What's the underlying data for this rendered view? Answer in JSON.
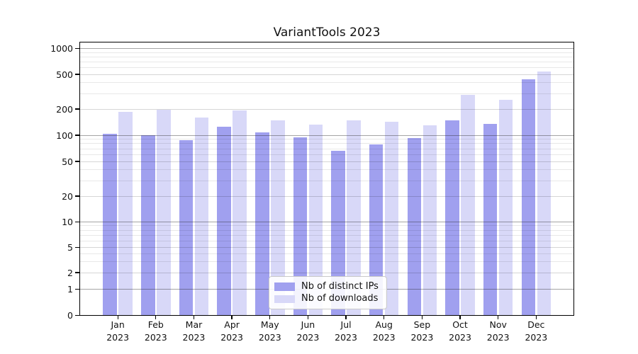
{
  "title": "VariantTools 2023",
  "chart_data": {
    "type": "bar",
    "title": "VariantTools 2023",
    "categories": [
      "Jan 2023",
      "Feb 2023",
      "Mar 2023",
      "Apr 2023",
      "May 2023",
      "Jun 2023",
      "Jul 2023",
      "Aug 2023",
      "Sep 2023",
      "Oct 2023",
      "Nov 2023",
      "Dec 2023"
    ],
    "series": [
      {
        "name": "Nb of distinct IPs",
        "color": "#a0a0ef",
        "values": [
          104,
          100,
          88,
          125,
          107,
          95,
          66,
          78,
          93,
          148,
          136,
          440
        ]
      },
      {
        "name": "Nb of downloads",
        "color": "#d8d8f8",
        "values": [
          185,
          195,
          160,
          192,
          148,
          132,
          147,
          143,
          130,
          292,
          255,
          535
        ]
      }
    ],
    "xlabel": "",
    "ylabel": "",
    "yscale": "log-like",
    "yticks": [
      0,
      1,
      2,
      5,
      10,
      20,
      50,
      100,
      200,
      500,
      1000
    ],
    "ylim": [
      0,
      1000
    ],
    "grid": "horizontal major+minor, drawn over bars",
    "legend_position": "inside bottom-center"
  }
}
